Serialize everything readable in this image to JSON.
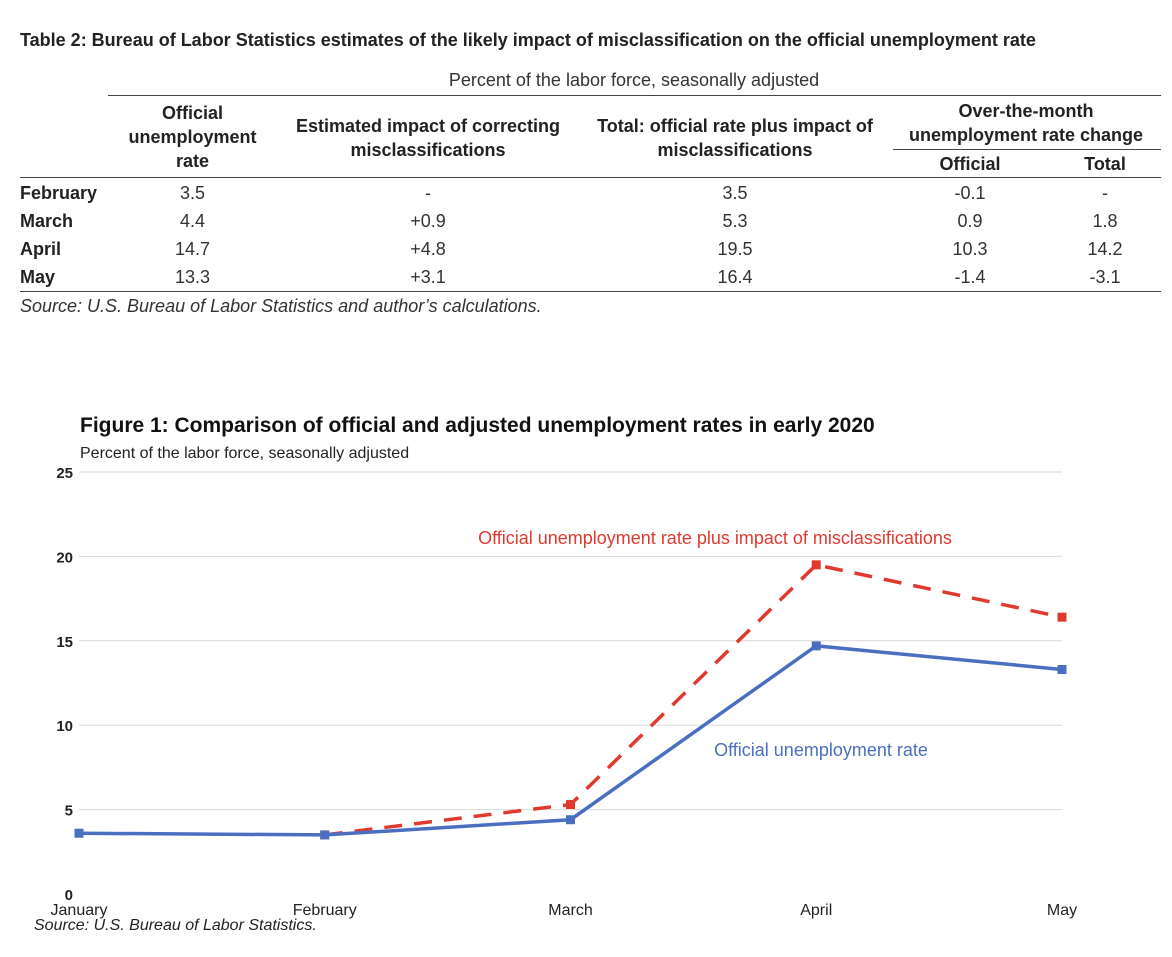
{
  "table": {
    "title": "Table 2: Bureau of Labor Statistics estimates of the likely impact of misclassification on the official unemployment rate",
    "subtitle": "Percent of the labor force, seasonally adjusted",
    "headers": {
      "official": [
        "Official",
        "unemployment",
        "rate"
      ],
      "impact": [
        "Estimated impact of correcting",
        "misclassifications"
      ],
      "total": [
        "Total: official rate plus impact of",
        "misclassifications"
      ],
      "otm": [
        "Over-the-month",
        "unemployment rate change"
      ],
      "otm_official": "Official",
      "otm_total": "Total"
    },
    "rows": [
      {
        "label": "February",
        "official": "3.5",
        "impact": "-",
        "total": "3.5",
        "otm_official": "-0.1",
        "otm_total": "-"
      },
      {
        "label": "March",
        "official": "4.4",
        "impact": "+0.9",
        "total": "5.3",
        "otm_official": "0.9",
        "otm_total": "1.8"
      },
      {
        "label": "April",
        "official": "14.7",
        "impact": "+4.8",
        "total": "19.5",
        "otm_official": "10.3",
        "otm_total": "14.2"
      },
      {
        "label": "May",
        "official": "13.3",
        "impact": "+3.1",
        "total": "16.4",
        "otm_official": "-1.4",
        "otm_total": "-3.1"
      }
    ],
    "source": "Source: U.S. Bureau of Labor Statistics and author’s calculations."
  },
  "figure": {
    "source": "Source: U.S. Bureau of Labor Statistics."
  },
  "colors": {
    "official": "#4a6fc1",
    "adjusted": "#e03a2f",
    "grid": "#d9d9d9"
  },
  "chart_data": {
    "type": "line",
    "title": "Figure 1: Comparison of official and adjusted unemployment rates in early 2020",
    "subtitle": "Percent of the labor force, seasonally adjusted",
    "categories": [
      "January",
      "February",
      "March",
      "April",
      "May"
    ],
    "ylim": [
      0,
      25
    ],
    "yticks": [
      0,
      5,
      10,
      15,
      20,
      25
    ],
    "grid": true,
    "series": [
      {
        "name": "Official unemployment rate",
        "style": "solid",
        "color": "#4a6fc1",
        "values": [
          3.6,
          3.5,
          4.4,
          14.7,
          13.3
        ]
      },
      {
        "name": "Official unemployment rate plus impact of misclassifications",
        "style": "dashed",
        "color": "#e03a2f",
        "values": [
          null,
          3.5,
          5.3,
          19.5,
          16.4
        ]
      }
    ]
  }
}
